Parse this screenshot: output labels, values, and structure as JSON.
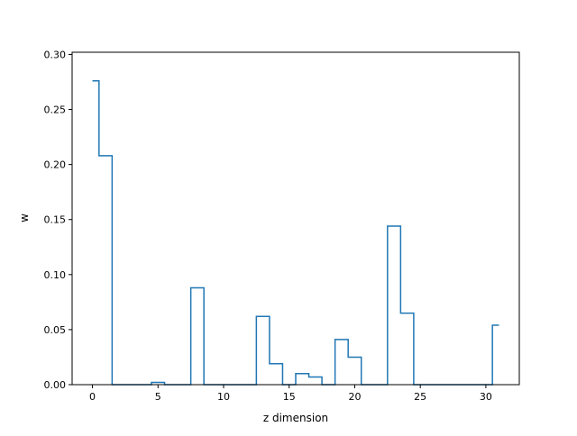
{
  "chart_data": {
    "type": "line",
    "drawstyle": "steps-mid",
    "title": "",
    "xlabel": "z dimension",
    "ylabel": "w",
    "xlim": [
      -1.55,
      32.55
    ],
    "ylim": [
      0.0,
      0.302
    ],
    "xticks": [
      0,
      5,
      10,
      15,
      20,
      25,
      30
    ],
    "yticks": [
      0.0,
      0.05,
      0.1,
      0.15,
      0.2,
      0.25,
      0.3
    ],
    "xtick_labels": [
      "0",
      "5",
      "10",
      "15",
      "20",
      "25",
      "30"
    ],
    "ytick_labels": [
      "0.00",
      "0.05",
      "0.10",
      "0.15",
      "0.20",
      "0.25",
      "0.30"
    ],
    "grid": false,
    "series": [
      {
        "color": "#1f77b4",
        "x": [
          0,
          1,
          2,
          3,
          4,
          5,
          6,
          7,
          8,
          9,
          10,
          11,
          12,
          13,
          14,
          15,
          16,
          17,
          18,
          19,
          20,
          21,
          22,
          23,
          24,
          25,
          26,
          27,
          28,
          29,
          30,
          31
        ],
        "y": [
          0.276,
          0.208,
          0.0,
          0.0,
          0.0,
          0.002,
          0.0,
          0.0,
          0.088,
          0.0,
          0.0,
          0.0,
          0.0,
          0.062,
          0.019,
          0.0,
          0.01,
          0.007,
          0.0,
          0.041,
          0.025,
          0.0,
          0.0,
          0.144,
          0.065,
          0.0,
          0.0,
          0.0,
          0.0,
          0.0,
          0.0,
          0.054
        ]
      }
    ]
  }
}
